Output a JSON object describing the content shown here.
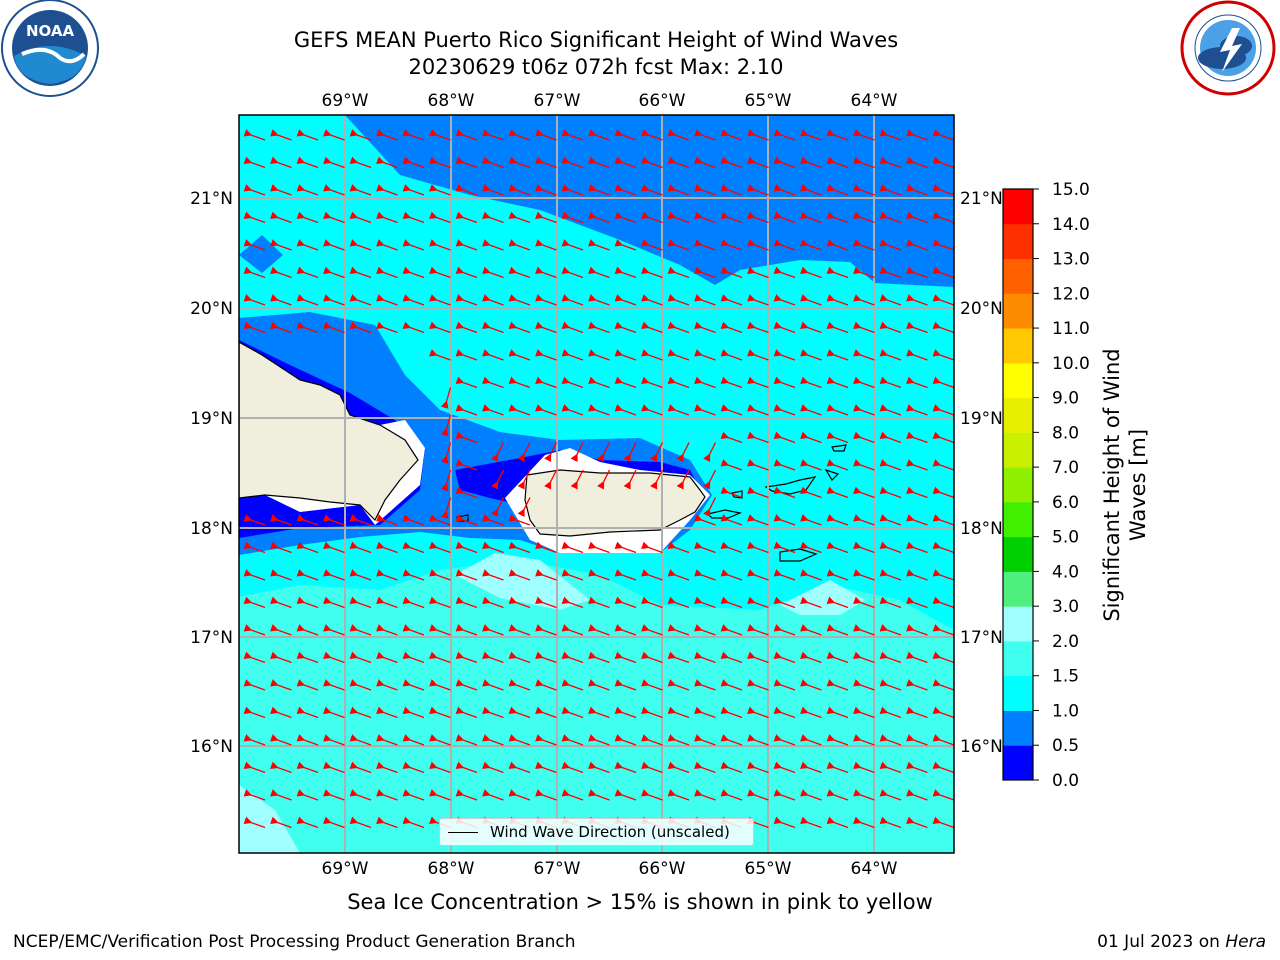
{
  "header": {
    "title_line1": "GEFS MEAN Puerto Rico Significant Height of Wind Waves",
    "title_line2": "20230629 t06z 072h fcst   Max: 2.10"
  },
  "logos": {
    "noaa": "NOAA",
    "nws": "NATIONAL WEATHER SERVICE"
  },
  "map": {
    "lon_labels": [
      "69°W",
      "68°W",
      "67°W",
      "66°W",
      "65°W",
      "64°W"
    ],
    "lat_labels": [
      "21°N",
      "20°N",
      "19°N",
      "18°N",
      "17°N",
      "16°N"
    ],
    "legend_label": "Wind Wave Direction (unscaled)",
    "colors": {
      "level_0_0p5": "#0000ff",
      "level_0p5_1": "#0080ff",
      "level_1_1p5": "#00ffff",
      "level_1p5_2": "#40ffee",
      "level_2_3": "#a0ffff",
      "land": "#f0eedd",
      "arrow": "#ff0000"
    }
  },
  "colorbar": {
    "title": "Significant Height of Wind Waves [m]",
    "ticks": [
      "0.0",
      "0.5",
      "1.0",
      "1.5",
      "2.0",
      "3.0",
      "4.0",
      "5.0",
      "6.0",
      "7.0",
      "8.0",
      "9.0",
      "10.0",
      "11.0",
      "12.0",
      "13.0",
      "14.0",
      "15.0"
    ],
    "colors": [
      "#0000ff",
      "#0080ff",
      "#00ffff",
      "#40ffee",
      "#a0ffff",
      "#50f080",
      "#00d000",
      "#40f000",
      "#90f000",
      "#c8f000",
      "#e8f000",
      "#ffff00",
      "#ffc800",
      "#ff8c00",
      "#ff6000",
      "#ff3000",
      "#ff0000"
    ]
  },
  "caption": "Sea Ice Concentration > 15% is shown in pink to yellow",
  "footer": {
    "left": "NCEP/EMC/Verification Post Processing Product Generation Branch",
    "right_prefix": "01 Jul 2023 on ",
    "right_host": "Hera"
  }
}
